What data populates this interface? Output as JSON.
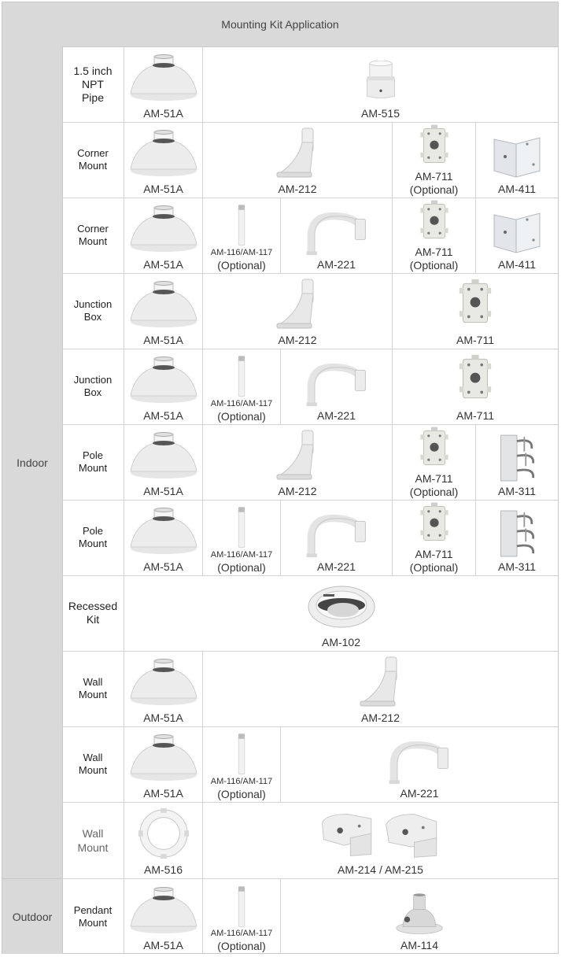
{
  "header": {
    "title": "Mounting Kit Application"
  },
  "categories": {
    "indoor": "Indoor",
    "outdoor": "Outdoor"
  },
  "rows": [
    {
      "label": "1.5 inch\nNPT\nPipe",
      "items": [
        {
          "name": "AM-51A"
        },
        {
          "name": "AM-515"
        }
      ]
    },
    {
      "label": "Corner\nMount",
      "items": [
        {
          "name": "AM-51A"
        },
        {
          "name": "AM-212"
        },
        {
          "name": "AM-711",
          "note": "(Optional)"
        },
        {
          "name": "AM-411"
        }
      ]
    },
    {
      "label": "Corner\nMount",
      "items": [
        {
          "name": "AM-51A"
        },
        {
          "name": "AM-116/AM-117",
          "note": "(Optional)"
        },
        {
          "name": "AM-221"
        },
        {
          "name": "AM-711",
          "note": "(Optional)"
        },
        {
          "name": "AM-411"
        }
      ]
    },
    {
      "label": "Junction\nBox",
      "items": [
        {
          "name": "AM-51A"
        },
        {
          "name": "AM-212"
        },
        {
          "name": "AM-711"
        }
      ]
    },
    {
      "label": "Junction\nBox",
      "items": [
        {
          "name": "AM-51A"
        },
        {
          "name": "AM-116/AM-117",
          "note": "(Optional)"
        },
        {
          "name": "AM-221"
        },
        {
          "name": "AM-711"
        }
      ]
    },
    {
      "label": "Pole\nMount",
      "items": [
        {
          "name": "AM-51A"
        },
        {
          "name": "AM-212"
        },
        {
          "name": "AM-711",
          "note": "(Optional)"
        },
        {
          "name": "AM-311"
        }
      ]
    },
    {
      "label": "Pole\nMount",
      "items": [
        {
          "name": "AM-51A"
        },
        {
          "name": "AM-116/AM-117",
          "note": "(Optional)"
        },
        {
          "name": "AM-221"
        },
        {
          "name": "AM-711",
          "note": "(Optional)"
        },
        {
          "name": "AM-311"
        }
      ]
    },
    {
      "label": "Recessed\nKit",
      "items": [
        {
          "name": "AM-102"
        }
      ]
    },
    {
      "label": "Wall\nMount",
      "items": [
        {
          "name": "AM-51A"
        },
        {
          "name": "AM-212"
        }
      ]
    },
    {
      "label": "Wall\nMount",
      "items": [
        {
          "name": "AM-51A"
        },
        {
          "name": "AM-116/AM-117",
          "note": "(Optional)"
        },
        {
          "name": "AM-221"
        }
      ]
    },
    {
      "label": "Wall\nMount",
      "items": [
        {
          "name": "AM-516"
        },
        {
          "name": "AM-214 / AM-215"
        }
      ]
    },
    {
      "label": "Pendant\nMount",
      "items": [
        {
          "name": "AM-51A"
        },
        {
          "name": "AM-116/AM-117",
          "note": "(Optional)"
        },
        {
          "name": "AM-114"
        }
      ]
    }
  ]
}
